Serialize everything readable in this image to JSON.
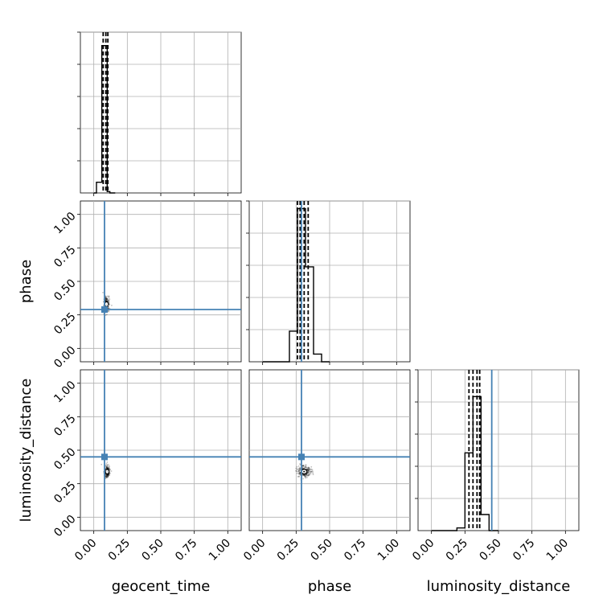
{
  "chart_data": {
    "type": "corner",
    "parameters": [
      "geocent_time",
      "phase",
      "luminosity_distance"
    ],
    "tick_labels": [
      "0.00",
      "0.25",
      "0.50",
      "0.75",
      "1.00"
    ],
    "range": [
      -0.1,
      1.1
    ],
    "truths": {
      "geocent_time": 0.08,
      "phase": 0.29,
      "luminosity_distance": 0.45
    },
    "grid": true,
    "colors": {
      "truth": "#4682b4",
      "hist": "#000000",
      "grid": "#b0b0b0",
      "density": "#000000"
    },
    "histograms": [
      {
        "parameter": "geocent_time",
        "bin_edges": [
          0.0,
          0.02,
          0.04,
          0.06,
          0.08,
          0.1,
          0.12,
          0.14,
          0.16
        ],
        "counts": [
          0,
          0.08,
          0.08,
          1.1,
          1.1,
          0.01,
          0,
          0
        ],
        "quantiles": [
          0.07,
          0.09,
          0.105
        ],
        "ylim": [
          0,
          1.2
        ]
      },
      {
        "parameter": "phase",
        "bin_edges": [
          0.0,
          0.2,
          0.26,
          0.32,
          0.38,
          0.44,
          0.5
        ],
        "counts": [
          0,
          0.2,
          1.0,
          0.62,
          0.05,
          0
        ],
        "quantiles": [
          0.26,
          0.28,
          0.31,
          0.34
        ],
        "ylim": [
          0,
          1.05
        ]
      },
      {
        "parameter": "luminosity_distance",
        "bin_edges": [
          0.0,
          0.19,
          0.25,
          0.31,
          0.37,
          0.43,
          0.5
        ],
        "counts": [
          0,
          0.02,
          0.58,
          1.0,
          0.12,
          0
        ],
        "quantiles": [
          0.28,
          0.31,
          0.34,
          0.36
        ],
        "ylim": [
          0,
          1.2
        ]
      }
    ],
    "scatter": [
      {
        "x": "geocent_time",
        "y": "phase",
        "center": [
          0.095,
          0.33
        ],
        "spread": [
          0.018,
          0.045
        ]
      },
      {
        "x": "geocent_time",
        "y": "luminosity_distance",
        "center": [
          0.1,
          0.34
        ],
        "spread": [
          0.018,
          0.04
        ]
      },
      {
        "x": "phase",
        "y": "luminosity_distance",
        "center": [
          0.31,
          0.34
        ],
        "spread": [
          0.045,
          0.04
        ]
      }
    ]
  }
}
